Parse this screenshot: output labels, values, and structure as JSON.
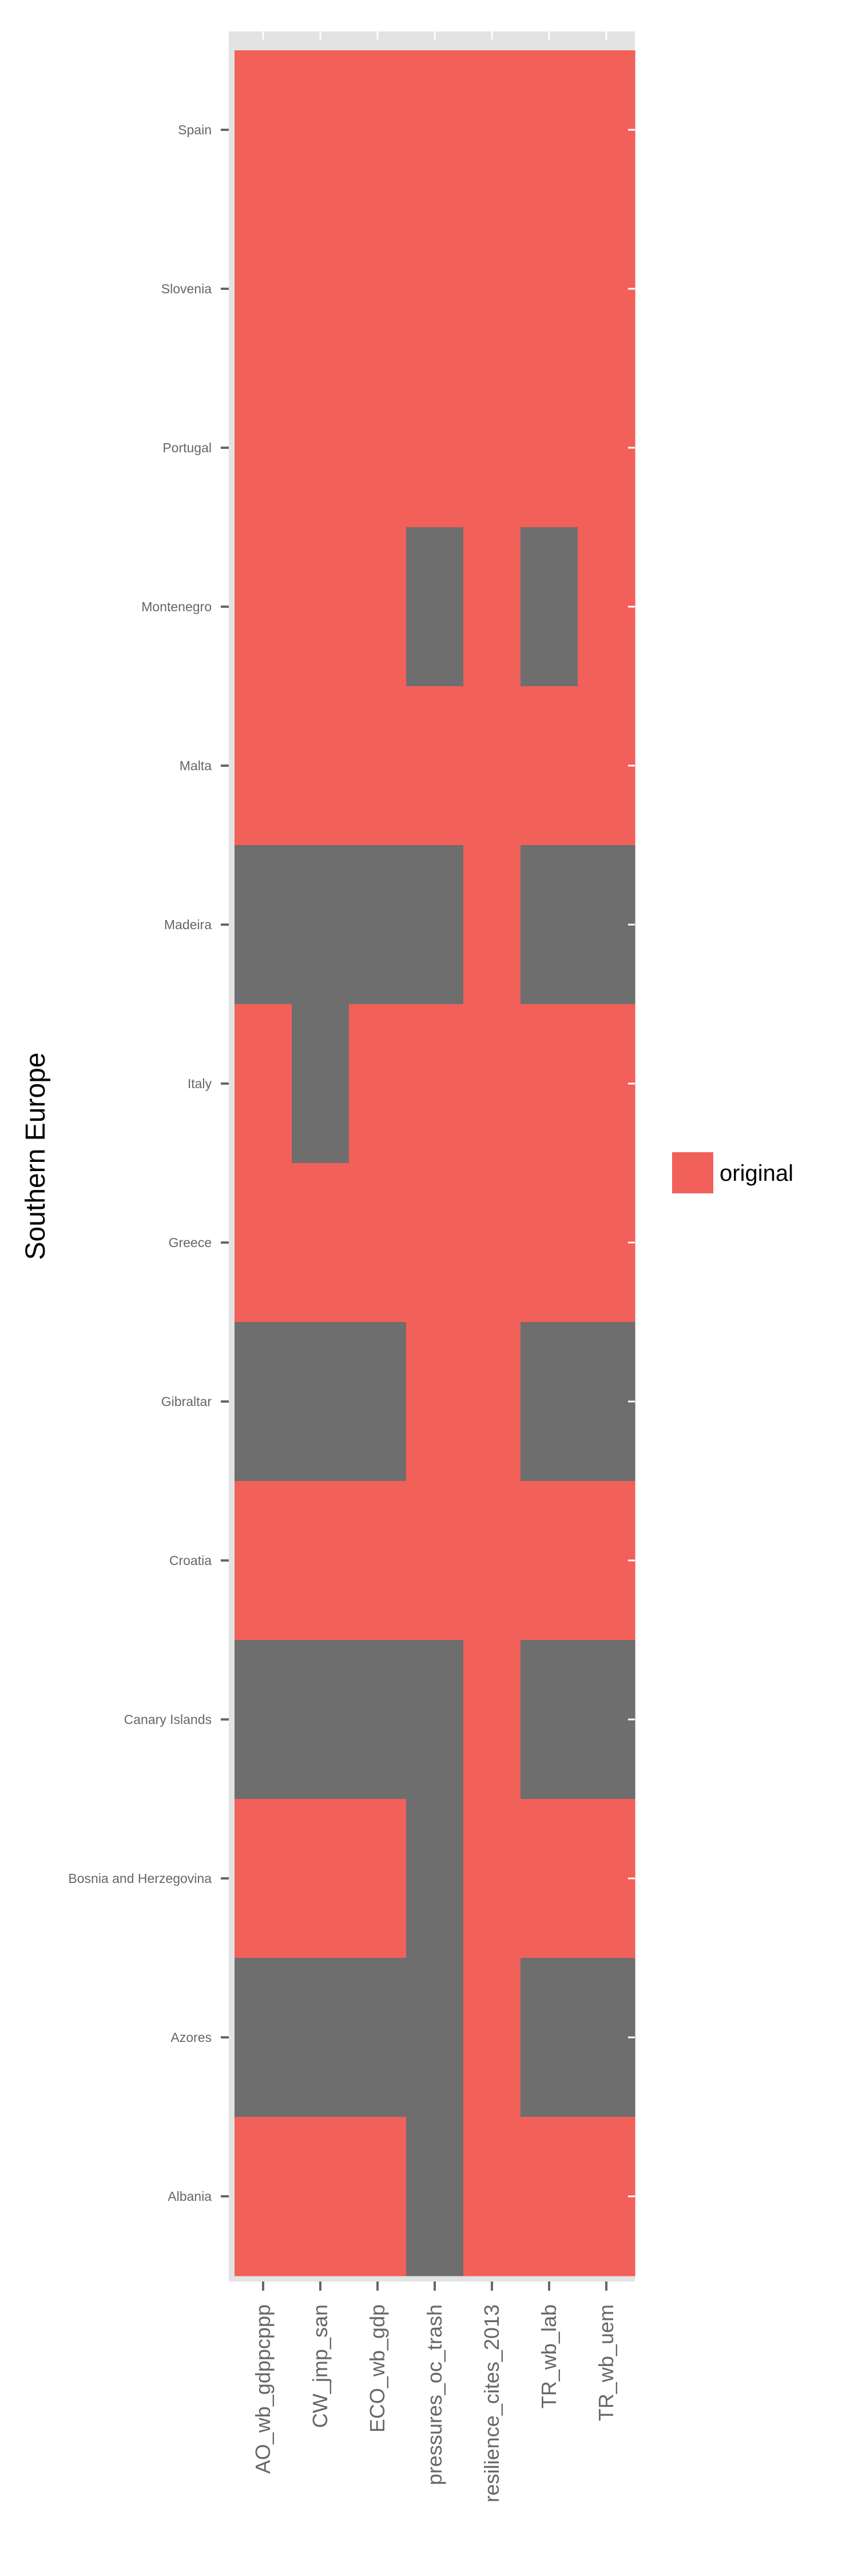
{
  "chart_data": {
    "type": "heatmap",
    "ylabel": "Southern Europe",
    "xlabel": "",
    "title": "",
    "columns": [
      "AO_wb_gdppcppp",
      "CW_jmp_san",
      "ECO_wb_gdp",
      "pressures_oc_trash",
      "resilience_cites_2013",
      "TR_wb_lab",
      "TR_wb_uem"
    ],
    "rows": [
      "Spain",
      "Slovenia",
      "Portugal",
      "Montenegro",
      "Malta",
      "Madeira",
      "Italy",
      "Greece",
      "Gibraltar",
      "Croatia",
      "Canary Islands",
      "Bosnia and Herzegovina",
      "Azores",
      "Albania"
    ],
    "cells": [
      [
        "original",
        "original",
        "original",
        "original",
        "original",
        "original",
        "original"
      ],
      [
        "original",
        "original",
        "original",
        "original",
        "original",
        "original",
        "original"
      ],
      [
        "original",
        "original",
        "original",
        "original",
        "original",
        "original",
        "original"
      ],
      [
        "original",
        "original",
        "original",
        null,
        "original",
        null,
        "original"
      ],
      [
        "original",
        "original",
        "original",
        "original",
        "original",
        "original",
        "original"
      ],
      [
        null,
        null,
        null,
        null,
        "original",
        null,
        null
      ],
      [
        "original",
        null,
        "original",
        "original",
        "original",
        "original",
        "original"
      ],
      [
        "original",
        "original",
        "original",
        "original",
        "original",
        "original",
        "original"
      ],
      [
        null,
        null,
        null,
        "original",
        "original",
        null,
        null
      ],
      [
        "original",
        "original",
        "original",
        "original",
        "original",
        "original",
        "original"
      ],
      [
        null,
        null,
        null,
        null,
        "original",
        null,
        null
      ],
      [
        "original",
        "original",
        "original",
        null,
        "original",
        "original",
        "original"
      ],
      [
        null,
        null,
        null,
        null,
        "original",
        null,
        null
      ],
      [
        "original",
        "original",
        "original",
        null,
        "original",
        "original",
        "original"
      ]
    ],
    "legend": {
      "entries": [
        {
          "label": "original",
          "color": "#F2605A"
        }
      ],
      "position": "right"
    },
    "colors": {
      "original": "#F2605A",
      "missing": "#6E6E6E",
      "panel": "#E3E3E3",
      "tick": "#666666",
      "label": "#000000"
    }
  }
}
